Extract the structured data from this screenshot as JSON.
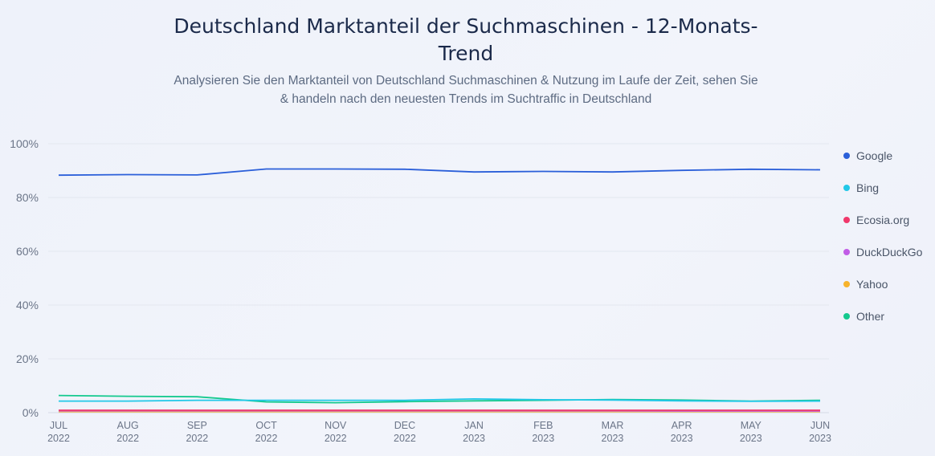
{
  "header": {
    "title": "Deutschland Marktanteil der Suchmaschinen - 12-Monats-Trend",
    "subtitle": "Analysieren Sie den Marktanteil von Deutschland Suchmaschinen & Nutzung im Laufe der Zeit, sehen Sie & handeln nach den neuesten Trends im Suchtraffic in Deutschland"
  },
  "chart_data": {
    "type": "line",
    "title": "Deutschland Marktanteil der Suchmaschinen - 12-Monats-Trend",
    "x": [
      "JUL 2022",
      "AUG 2022",
      "SEP 2022",
      "OCT 2022",
      "NOV 2022",
      "DEC 2022",
      "JAN 2023",
      "FEB 2023",
      "MAR 2023",
      "APR 2023",
      "MAY 2023",
      "JUN 2023"
    ],
    "x_ticks": [
      {
        "month": "JUL",
        "year": "2022"
      },
      {
        "month": "AUG",
        "year": "2022"
      },
      {
        "month": "SEP",
        "year": "2022"
      },
      {
        "month": "OCT",
        "year": "2022"
      },
      {
        "month": "NOV",
        "year": "2022"
      },
      {
        "month": "DEC",
        "year": "2022"
      },
      {
        "month": "JAN",
        "year": "2023"
      },
      {
        "month": "FEB",
        "year": "2023"
      },
      {
        "month": "MAR",
        "year": "2023"
      },
      {
        "month": "APR",
        "year": "2023"
      },
      {
        "month": "MAY",
        "year": "2023"
      },
      {
        "month": "JUN",
        "year": "2023"
      }
    ],
    "y_ticks": [
      "0%",
      "20%",
      "40%",
      "60%",
      "80%",
      "100%"
    ],
    "ylim": [
      0,
      100
    ],
    "grid": true,
    "legend_position": "right",
    "series": [
      {
        "name": "Google",
        "color": "#2b5fd9",
        "values": [
          88.3,
          88.5,
          88.4,
          90.6,
          90.6,
          90.5,
          89.5,
          89.7,
          89.5,
          90.1,
          90.5,
          90.3
        ]
      },
      {
        "name": "Bing",
        "color": "#21c8e8",
        "values": [
          4.3,
          4.3,
          4.6,
          4.6,
          4.6,
          4.6,
          5.1,
          4.8,
          4.7,
          4.4,
          4.2,
          4.3
        ]
      },
      {
        "name": "Ecosia.org",
        "color": "#f0386b",
        "values": [
          0.9,
          0.9,
          0.9,
          0.9,
          0.9,
          0.9,
          0.9,
          0.9,
          0.9,
          0.9,
          0.9,
          0.9
        ]
      },
      {
        "name": "DuckDuckGo",
        "color": "#c15ce6",
        "values": [
          0.7,
          0.7,
          0.7,
          0.7,
          0.7,
          0.7,
          0.7,
          0.7,
          0.7,
          0.6,
          0.6,
          0.6
        ]
      },
      {
        "name": "Yahoo",
        "color": "#f7b32b",
        "values": [
          0.4,
          0.4,
          0.4,
          0.4,
          0.4,
          0.4,
          0.4,
          0.4,
          0.4,
          0.4,
          0.4,
          0.4
        ]
      },
      {
        "name": "Other",
        "color": "#14c98e",
        "values": [
          6.4,
          6.1,
          5.9,
          4.0,
          3.7,
          4.1,
          4.4,
          4.6,
          4.9,
          4.7,
          4.3,
          4.6
        ]
      }
    ]
  }
}
